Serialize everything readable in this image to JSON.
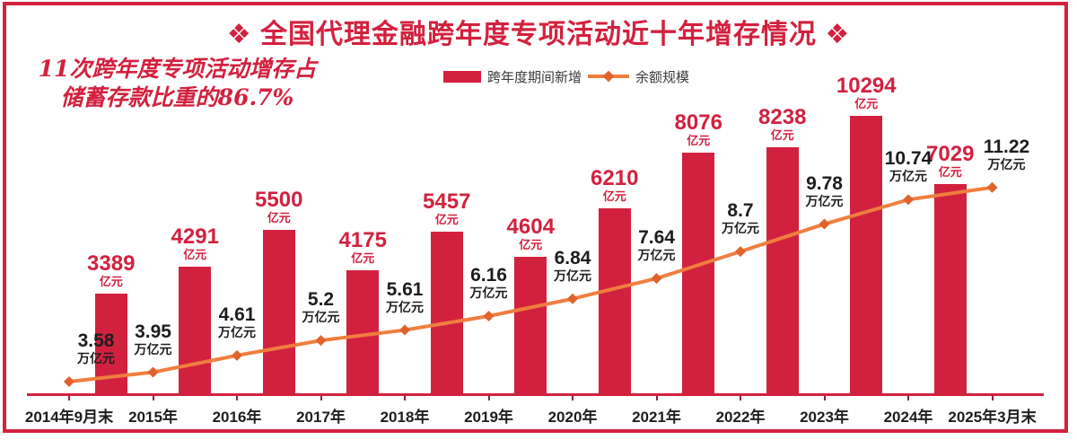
{
  "title": {
    "text": "❖ 全国代理金融跨年度专项活动近十年增存情况 ❖"
  },
  "annotation": {
    "line1": "11次跨年度专项活动增存占",
    "line2": "储蓄存款比重的86.7%"
  },
  "legend": {
    "bar_label": "跨年度期间新增",
    "line_label": "余额规模"
  },
  "colors": {
    "red": "#d2213e",
    "orange": "#ef7e3e",
    "marker_orange": "#e0622c",
    "text_black": "#1d1d1f"
  },
  "chart_data": {
    "type": "bar+line combo",
    "title": "全国代理金融跨年度专项活动近十年增存情况",
    "categories": [
      "2014年9月末",
      "2015年",
      "2016年",
      "2017年",
      "2018年",
      "2019年",
      "2020年",
      "2021年",
      "2022年",
      "2023年",
      "2024年",
      "2025年3月末"
    ],
    "series": [
      {
        "name": "跨年度期间新增",
        "type": "bar",
        "unit": "亿元",
        "placement": "between-categories",
        "values": [
          3389,
          4291,
          5500,
          4175,
          5457,
          4604,
          6210,
          8076,
          8238,
          10294,
          7029
        ]
      },
      {
        "name": "余额规模",
        "type": "line",
        "unit": "万亿元",
        "placement": "on-categories",
        "values": [
          3.58,
          3.95,
          4.61,
          5.2,
          5.61,
          6.16,
          6.84,
          7.64,
          8.7,
          9.78,
          10.74,
          11.22
        ]
      }
    ],
    "legend_position": "top",
    "grid": false,
    "y_axis_visible": false,
    "data_labels_visible": true
  }
}
